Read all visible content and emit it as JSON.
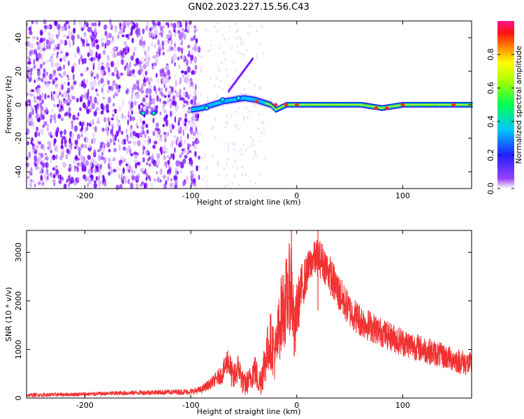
{
  "figure": {
    "title": "GN02.2023.227.15.56.C43"
  },
  "chart_data": [
    {
      "type": "heatmap",
      "name": "spectrogram",
      "xlabel": "Height of straight line (km)",
      "ylabel": "Frequency (Hz)",
      "xlim": [
        -255,
        165
      ],
      "ylim": [
        -50,
        50
      ],
      "xticks": [
        -200,
        -100,
        0,
        100
      ],
      "yticks": [
        -40,
        -20,
        0,
        20,
        40
      ],
      "noise_region_x": [
        -255,
        -100
      ],
      "signal_track": {
        "x": [
          -100,
          -90,
          -80,
          -70,
          -60,
          -50,
          -40,
          -30,
          -25,
          -20,
          -10,
          0,
          20,
          40,
          60,
          80,
          100,
          120,
          140,
          165
        ],
        "frequency": [
          -3,
          -2,
          0,
          2,
          3,
          4,
          3,
          1,
          0,
          -3,
          0,
          0,
          0,
          0,
          0,
          -2,
          0,
          0,
          0,
          0
        ]
      },
      "colorbar": {
        "label": "Normalized spectral amplitude",
        "range": [
          0.0,
          1.0
        ],
        "ticks": [
          "0.0",
          "0.2",
          "0.4",
          "0.6",
          "0.8"
        ],
        "colors": [
          "#ffffff",
          "#7a00ff",
          "#0000ff",
          "#00e0ff",
          "#00ff40",
          "#ffff00",
          "#ff8000",
          "#ff0000",
          "#ff00a0"
        ]
      }
    },
    {
      "type": "line",
      "name": "snr",
      "xlabel": "Height of straight line (km)",
      "ylabel": "SNR (10 * v/v)",
      "xlim": [
        -255,
        165
      ],
      "ylim": [
        0,
        3450
      ],
      "xticks": [
        -200,
        -100,
        0,
        100
      ],
      "yticks": [
        0,
        1000,
        2000,
        3000
      ],
      "color": "#f03232",
      "envelope": {
        "x": [
          -255,
          -200,
          -150,
          -100,
          -90,
          -80,
          -70,
          -65,
          -60,
          -55,
          -50,
          -45,
          -40,
          -35,
          -30,
          -25,
          -20,
          -15,
          -10,
          -5,
          -2,
          0,
          5,
          10,
          15,
          20,
          25,
          30,
          40,
          50,
          60,
          80,
          100,
          120,
          140,
          165
        ],
        "base": [
          60,
          80,
          110,
          130,
          170,
          320,
          500,
          800,
          380,
          650,
          250,
          350,
          600,
          300,
          750,
          1200,
          900,
          1700,
          2000,
          2400,
          1200,
          1800,
          2300,
          2600,
          2850,
          2900,
          2800,
          2600,
          2150,
          1800,
          1600,
          1350,
          1150,
          1000,
          850,
          680
        ],
        "spread": [
          40,
          40,
          50,
          60,
          80,
          120,
          200,
          300,
          300,
          300,
          250,
          250,
          350,
          300,
          500,
          600,
          600,
          800,
          900,
          1000,
          700,
          600,
          500,
          400,
          350,
          400,
          400,
          400,
          400,
          350,
          350,
          300,
          300,
          280,
          260,
          260
        ]
      },
      "peaks": [
        {
          "x": -5,
          "y": 3450
        },
        {
          "x": 20,
          "y": 3450
        }
      ]
    }
  ]
}
